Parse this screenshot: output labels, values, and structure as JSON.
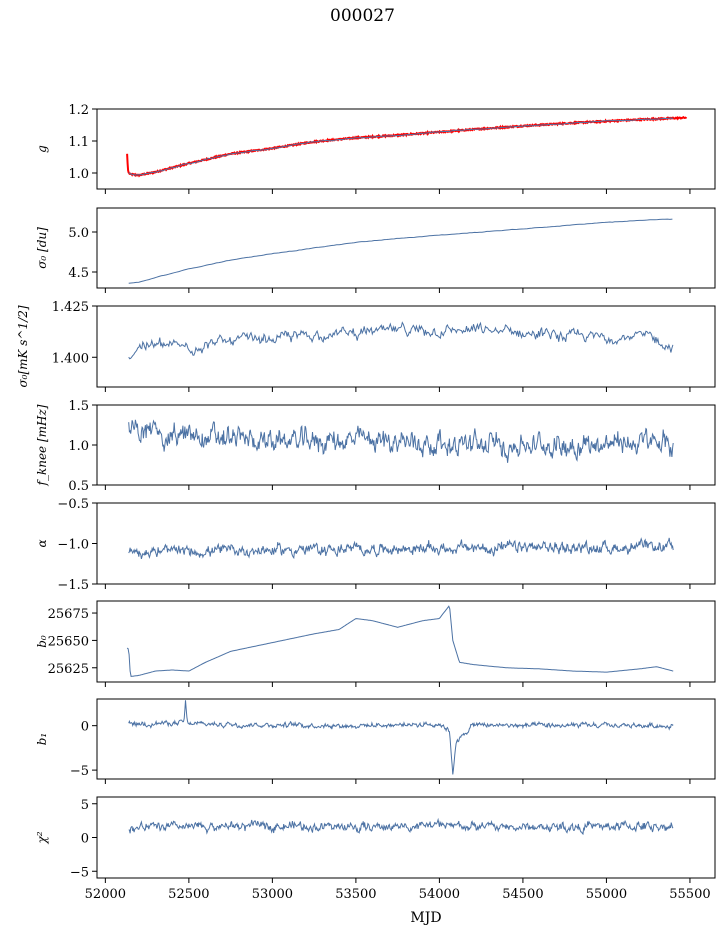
{
  "figure": {
    "title": "000027"
  },
  "chart_data": [
    {
      "type": "line",
      "ylabel": "g",
      "ylim": [
        0.95,
        1.2
      ],
      "yticks": [
        1.0,
        1.1,
        1.2
      ],
      "ytick_labels": [
        "1.0",
        "1.1",
        "1.2"
      ],
      "xlim": [
        51950,
        55650
      ],
      "series": [
        {
          "color": "#ff0000",
          "width": 2,
          "x": [
            52130,
            52135,
            52140,
            52150,
            52200,
            52300,
            52500,
            52750,
            53000,
            53250,
            53500,
            53750,
            54000,
            54250,
            54500,
            54750,
            55000,
            55250,
            55480
          ],
          "y": [
            1.06,
            1.01,
            1.0,
            0.996,
            0.993,
            1.003,
            1.03,
            1.06,
            1.077,
            1.098,
            1.11,
            1.118,
            1.128,
            1.138,
            1.147,
            1.155,
            1.162,
            1.168,
            1.173
          ]
        },
        {
          "color": "#4c72a4",
          "width": 1,
          "x": [
            52140,
            52150,
            52200,
            52300,
            52500,
            52750,
            53000,
            53250,
            53500,
            53750,
            54000,
            54250,
            54500,
            54750,
            55000,
            55250,
            55400
          ],
          "y": [
            1.0,
            0.996,
            0.993,
            1.003,
            1.03,
            1.06,
            1.077,
            1.098,
            1.11,
            1.118,
            1.128,
            1.138,
            1.147,
            1.155,
            1.162,
            1.168,
            1.171
          ]
        }
      ]
    },
    {
      "type": "line",
      "ylabel": "σ₀ [du]",
      "ylim": [
        4.3,
        5.3
      ],
      "yticks": [
        4.5,
        5.0
      ],
      "ytick_labels": [
        "4.5",
        "5.0"
      ],
      "xlim": [
        51950,
        55650
      ],
      "series": [
        {
          "color": "#4c72a4",
          "width": 1,
          "x": [
            52140,
            52200,
            52300,
            52500,
            52750,
            53000,
            53250,
            53500,
            53750,
            54000,
            54250,
            54500,
            54750,
            55000,
            55250,
            55400
          ],
          "y": [
            4.36,
            4.37,
            4.43,
            4.54,
            4.65,
            4.73,
            4.8,
            4.87,
            4.92,
            4.96,
            5.0,
            5.04,
            5.08,
            5.12,
            5.15,
            5.16
          ]
        }
      ]
    },
    {
      "type": "line",
      "ylabel": "σ₀[mK s^1/2]",
      "ylim": [
        1.3855,
        1.425
      ],
      "yticks": [
        1.4,
        1.425
      ],
      "ytick_labels": [
        "1.400",
        "1.425"
      ],
      "xlim": [
        51950,
        55650
      ],
      "series": [
        {
          "color": "#4c72a4",
          "width": 1,
          "x": [
            52140,
            52200,
            52300,
            52500,
            52750,
            53000,
            53250,
            53500,
            53750,
            54000,
            54250,
            54500,
            54750,
            55000,
            55250,
            55400
          ],
          "y": [
            1.4,
            1.406,
            1.406,
            1.405,
            1.408,
            1.409,
            1.411,
            1.412,
            1.413,
            1.413,
            1.413,
            1.412,
            1.41,
            1.41,
            1.41,
            1.405
          ]
        }
      ]
    },
    {
      "type": "line",
      "ylabel": "f_knee [mHz]",
      "ylim": [
        0.5,
        1.5
      ],
      "yticks": [
        0.5,
        1.0,
        1.5
      ],
      "ytick_labels": [
        "0.5",
        "1.0",
        "1.5"
      ],
      "xlim": [
        51950,
        55650
      ],
      "series": [
        {
          "color": "#4c72a4",
          "width": 1,
          "x": [
            52140,
            52300,
            52500,
            52750,
            53000,
            53250,
            53500,
            53750,
            54000,
            54250,
            54500,
            54750,
            55000,
            55250,
            55400
          ],
          "y": [
            1.2,
            1.15,
            1.1,
            1.08,
            1.05,
            1.05,
            1.06,
            1.05,
            1.02,
            1.0,
            1.0,
            1.0,
            1.02,
            1.03,
            1.0
          ]
        }
      ]
    },
    {
      "type": "line",
      "ylabel": "α",
      "ylim": [
        -1.5,
        -0.5
      ],
      "yticks": [
        -1.5,
        -1.0,
        -0.5
      ],
      "ytick_labels": [
        "−1.5",
        "−1.0",
        "−0.5"
      ],
      "xlim": [
        51950,
        55650
      ],
      "series": [
        {
          "color": "#4c72a4",
          "width": 1,
          "x": [
            52140,
            52500,
            53000,
            53500,
            54000,
            54500,
            55000,
            55400
          ],
          "y": [
            -1.1,
            -1.1,
            -1.08,
            -1.07,
            -1.06,
            -1.05,
            -1.05,
            -1.05
          ]
        }
      ]
    },
    {
      "type": "line",
      "ylabel": "b₀",
      "ylim": [
        25612,
        25686
      ],
      "yticks": [
        25625,
        25650,
        25675
      ],
      "ytick_labels": [
        "25625",
        "25650",
        "25675"
      ],
      "xlim": [
        51950,
        55650
      ],
      "series": [
        {
          "color": "#4c72a4",
          "width": 1,
          "x": [
            52130,
            52140,
            52150,
            52200,
            52300,
            52400,
            52500,
            52600,
            52750,
            53000,
            53250,
            53400,
            53500,
            53600,
            53750,
            53900,
            54000,
            54060,
            54080,
            54120,
            54200,
            54400,
            54600,
            54800,
            55000,
            55200,
            55300,
            55400
          ],
          "y": [
            25643,
            25642,
            25617,
            25618,
            25622,
            25623,
            25622,
            25630,
            25640,
            25648,
            25656,
            25660,
            25670,
            25668,
            25662,
            25668,
            25670,
            25682,
            25650,
            25630,
            25628,
            25625,
            25624,
            25622,
            25621,
            25624,
            25626,
            25622
          ]
        }
      ]
    },
    {
      "type": "line",
      "ylabel": "b₁",
      "ylim": [
        -6,
        3
      ],
      "yticks": [
        -5,
        0
      ],
      "ytick_labels": [
        "−5",
        "0"
      ],
      "xlim": [
        51950,
        55650
      ],
      "series": [
        {
          "color": "#4c72a4",
          "width": 1,
          "x": [
            52140,
            52470,
            52480,
            52490,
            53000,
            53500,
            54000,
            54060,
            54080,
            54100,
            54200,
            54500,
            55000,
            55400
          ],
          "y": [
            0.2,
            0.3,
            2.8,
            0.2,
            0.1,
            0.0,
            0.2,
            -0.5,
            -5.2,
            -2.0,
            0.1,
            0.0,
            0.0,
            0.0
          ]
        }
      ]
    },
    {
      "type": "line",
      "ylabel": "χ²",
      "xlabel": "MJD",
      "ylim": [
        -6,
        6
      ],
      "yticks": [
        -5,
        0,
        5
      ],
      "ytick_labels": [
        "−5",
        "0",
        "5"
      ],
      "xlim": [
        51950,
        55650
      ],
      "xticks": [
        52000,
        52500,
        53000,
        53500,
        54000,
        54500,
        55000,
        55500
      ],
      "xtick_labels": [
        "52000",
        "52500",
        "53000",
        "53500",
        "54000",
        "54500",
        "55000",
        "55500"
      ],
      "series": [
        {
          "color": "#4c72a4",
          "width": 1,
          "x": [
            52140,
            52500,
            53000,
            53500,
            54000,
            54500,
            55000,
            55400
          ],
          "y": [
            1.5,
            1.5,
            1.8,
            1.5,
            1.8,
            1.5,
            1.6,
            1.7
          ]
        }
      ]
    }
  ]
}
